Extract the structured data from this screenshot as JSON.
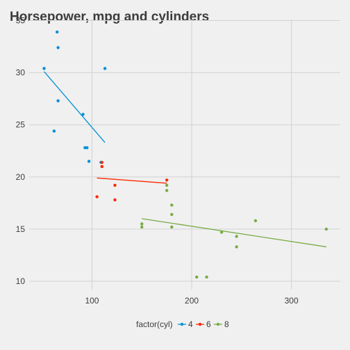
{
  "chart_data": {
    "type": "scatter",
    "title": "Horsepower, mpg and cylinders",
    "xlabel": "",
    "ylabel": "",
    "xlim": [
      37,
      349
    ],
    "ylim": [
      9.2,
      35.1
    ],
    "x_ticks": [
      100,
      200,
      300
    ],
    "y_ticks": [
      10,
      15,
      20,
      25,
      30,
      35
    ],
    "grid": true,
    "legend": {
      "title": "factor(cyl)",
      "position": "bottom"
    },
    "series": [
      {
        "name": "4",
        "color": "#008fd5",
        "points": [
          {
            "x": 93,
            "y": 22.8
          },
          {
            "x": 62,
            "y": 24.4
          },
          {
            "x": 95,
            "y": 22.8
          },
          {
            "x": 66,
            "y": 32.4
          },
          {
            "x": 52,
            "y": 30.4
          },
          {
            "x": 65,
            "y": 33.9
          },
          {
            "x": 97,
            "y": 21.5
          },
          {
            "x": 66,
            "y": 27.3
          },
          {
            "x": 91,
            "y": 26.0
          },
          {
            "x": 113,
            "y": 30.4
          },
          {
            "x": 109,
            "y": 21.4
          }
        ],
        "fit": [
          {
            "x": 52,
            "y": 30.1
          },
          {
            "x": 113,
            "y": 23.3
          }
        ]
      },
      {
        "name": "6",
        "color": "#ff2700",
        "points": [
          {
            "x": 110,
            "y": 21.0
          },
          {
            "x": 110,
            "y": 21.0
          },
          {
            "x": 110,
            "y": 21.4
          },
          {
            "x": 105,
            "y": 18.1
          },
          {
            "x": 123,
            "y": 19.2
          },
          {
            "x": 123,
            "y": 17.8
          },
          {
            "x": 175,
            "y": 19.7
          }
        ],
        "fit": [
          {
            "x": 105,
            "y": 19.9
          },
          {
            "x": 175,
            "y": 19.4
          }
        ]
      },
      {
        "name": "8",
        "color": "#77ab43",
        "points": [
          {
            "x": 175,
            "y": 18.7
          },
          {
            "x": 245,
            "y": 14.3
          },
          {
            "x": 180,
            "y": 16.4
          },
          {
            "x": 180,
            "y": 17.3
          },
          {
            "x": 180,
            "y": 15.2
          },
          {
            "x": 205,
            "y": 10.4
          },
          {
            "x": 215,
            "y": 10.4
          },
          {
            "x": 230,
            "y": 14.7
          },
          {
            "x": 150,
            "y": 15.5
          },
          {
            "x": 150,
            "y": 15.2
          },
          {
            "x": 245,
            "y": 13.3
          },
          {
            "x": 175,
            "y": 19.2
          },
          {
            "x": 264,
            "y": 15.8
          },
          {
            "x": 335,
            "y": 15.0
          }
        ],
        "fit": [
          {
            "x": 150,
            "y": 16.0
          },
          {
            "x": 335,
            "y": 13.3
          }
        ]
      }
    ]
  }
}
